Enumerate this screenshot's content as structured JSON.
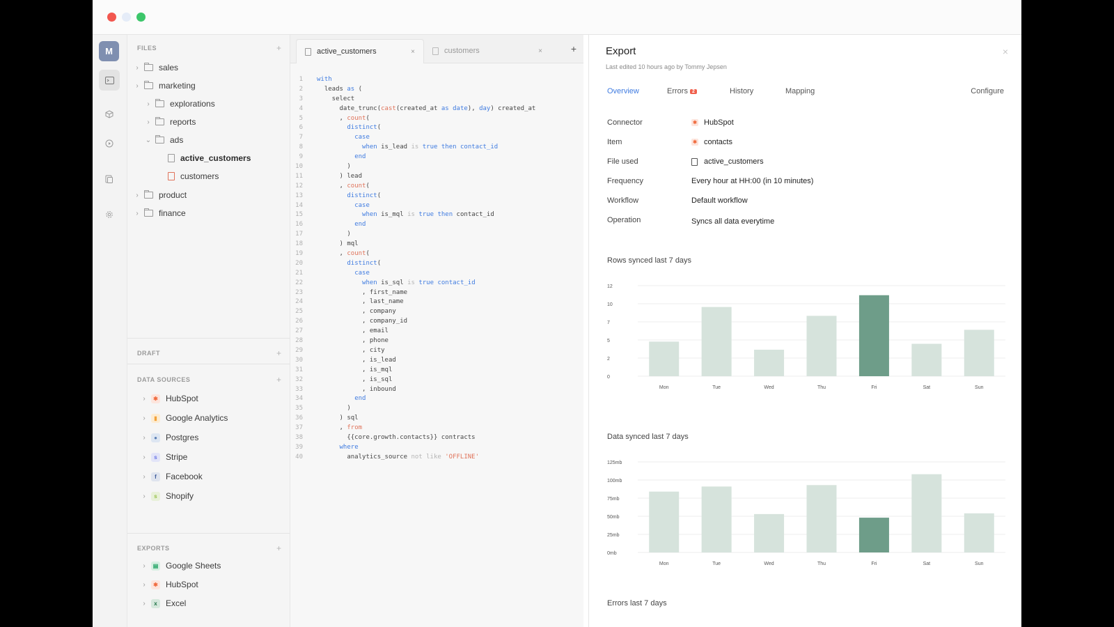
{
  "sidebar": {
    "avatar_initial": "M",
    "files_head": "FILES",
    "files": [
      {
        "label": "sales"
      },
      {
        "label": "marketing"
      },
      {
        "label": "explorations"
      },
      {
        "label": "reports"
      },
      {
        "label": "ads"
      },
      {
        "label": "active_customers"
      },
      {
        "label": "customers"
      },
      {
        "label": "product"
      },
      {
        "label": "finance"
      }
    ],
    "draft_head": "DRAFT",
    "sources_head": "DATA SOURCES",
    "sources": [
      {
        "label": "HubSpot",
        "color": "#f06a3d"
      },
      {
        "label": "Google Analytics",
        "color": "#f2a23a"
      },
      {
        "label": "Postgres",
        "color": "#5b7fb5"
      },
      {
        "label": "Stripe",
        "color": "#6772e5"
      },
      {
        "label": "Facebook",
        "color": "#3b5998"
      },
      {
        "label": "Shopify",
        "color": "#95bf47"
      }
    ],
    "exports_head": "EXPORTS",
    "exports": [
      {
        "label": "Google Sheets",
        "color": "#1fa463"
      },
      {
        "label": "HubSpot",
        "color": "#f06a3d"
      },
      {
        "label": "Excel",
        "color": "#1d7044"
      }
    ]
  },
  "editor": {
    "tabs": [
      {
        "label": "active_customers"
      },
      {
        "label": "customers"
      }
    ],
    "close_glyph": "×",
    "add_glyph": "+"
  },
  "panel": {
    "title": "Export",
    "subtitle": "Last edited 10 hours ago by Tommy Jepsen",
    "tabs": {
      "overview": "Overview",
      "errors": "Errors",
      "errors_count": "2",
      "history": "History",
      "mapping": "Mapping",
      "configure": "Configure"
    },
    "props": [
      {
        "label": "Connector",
        "value": "HubSpot"
      },
      {
        "label": "Item",
        "value": "contacts"
      },
      {
        "label": "File used",
        "value": "active_customers"
      },
      {
        "label": "Frequency",
        "value": "Every hour at HH:00 (in 10 minutes)"
      },
      {
        "label": "Workflow",
        "value": "Default workflow"
      },
      {
        "label": "Operation",
        "value": "Syncs all data everytime"
      }
    ],
    "errors_title": "Errors last 7 days"
  },
  "chart_data": [
    {
      "type": "bar",
      "title": "Rows synced last 7 days",
      "categories": [
        "Mon",
        "Tue",
        "Wed",
        "Thu",
        "Fri",
        "Sat",
        "Sun"
      ],
      "values": [
        4.7,
        9.4,
        3.6,
        8.2,
        11,
        4.4,
        6.3
      ],
      "y_ticks": [
        "0",
        "2",
        "5",
        "7",
        "10",
        "12"
      ],
      "ylim": [
        0,
        12.3
      ],
      "highlight_index": 4,
      "bar_color": "#d6e3dc",
      "highlight_color": "#6e9d89"
    },
    {
      "type": "bar",
      "title": "Data synced last 7 days",
      "categories": [
        "Mon",
        "Tue",
        "Wed",
        "Thu",
        "Fri",
        "Sat",
        "Sun"
      ],
      "values": [
        84,
        91,
        53,
        93,
        48,
        108,
        54
      ],
      "y_ticks": [
        "0mb",
        "25mb",
        "50mb",
        "75mb",
        "100mb",
        "125mb"
      ],
      "ylim": [
        0,
        125
      ],
      "highlight_index": 4,
      "bar_color": "#d6e3dc",
      "highlight_color": "#6e9d89"
    }
  ]
}
